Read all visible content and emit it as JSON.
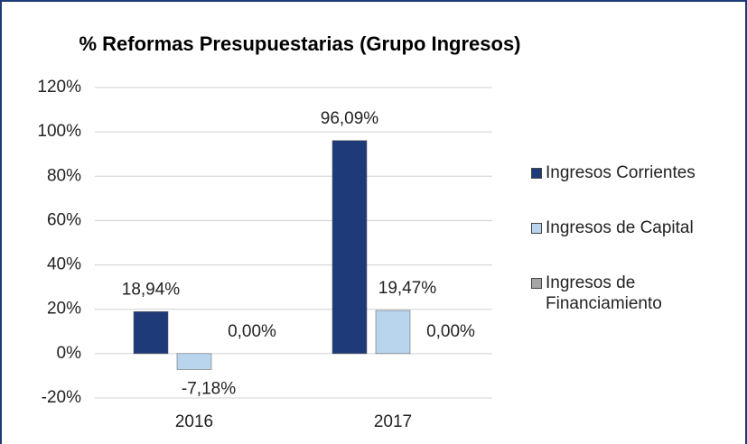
{
  "chart_data": {
    "type": "bar",
    "title": "% Reformas Presupuestarias (Grupo Ingresos)",
    "categories": [
      "2016",
      "2017"
    ],
    "series": [
      {
        "name": "Ingresos Corrientes",
        "color": "#1f3a78",
        "values": [
          18.94,
          96.09
        ],
        "value_labels": [
          "18,94%",
          "96,09%"
        ]
      },
      {
        "name": "Ingresos de Capital",
        "color": "#b9d5ee",
        "values": [
          -7.18,
          19.47
        ],
        "value_labels": [
          "-7,18%",
          "19,47%"
        ]
      },
      {
        "name": "Ingresos de Financiamiento",
        "color": "#a6a6a6",
        "values": [
          0,
          0
        ],
        "value_labels": [
          "0,00%",
          "0,00%"
        ]
      }
    ],
    "ylim": [
      -20,
      120
    ],
    "yticks": [
      {
        "value": -20,
        "label": "-20%"
      },
      {
        "value": 0,
        "label": "0%"
      },
      {
        "value": 20,
        "label": "20%"
      },
      {
        "value": 40,
        "label": "40%"
      },
      {
        "value": 60,
        "label": "60%"
      },
      {
        "value": 80,
        "label": "80%"
      },
      {
        "value": 100,
        "label": "100%"
      },
      {
        "value": 120,
        "label": "120%"
      }
    ],
    "grid": true,
    "legend": "right"
  }
}
